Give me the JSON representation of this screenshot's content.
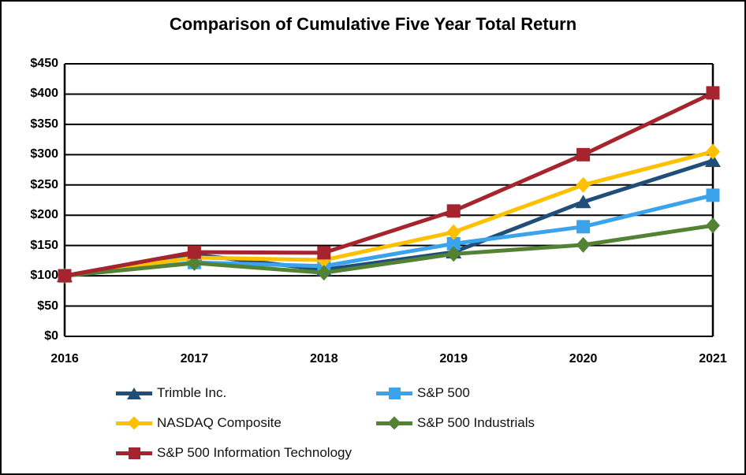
{
  "title": "Comparison of Cumulative Five Year Total Return",
  "chart_data": {
    "type": "line",
    "x": [
      "2016",
      "2017",
      "2018",
      "2019",
      "2020",
      "2021"
    ],
    "series": [
      {
        "name": "Trimble Inc.",
        "color": "#1F4E79",
        "marker": "triangle",
        "values": [
          100,
          135,
          110,
          139,
          222,
          290
        ]
      },
      {
        "name": "S&P 500",
        "color": "#3BA3EB",
        "marker": "square",
        "values": [
          100,
          122,
          116,
          153,
          181,
          233
        ]
      },
      {
        "name": "NASDAQ Composite",
        "color": "#FFC000",
        "marker": "diamond",
        "values": [
          100,
          130,
          126,
          172,
          250,
          305
        ]
      },
      {
        "name": "S&P 500 Industrials",
        "color": "#548235",
        "marker": "diamond",
        "values": [
          100,
          121,
          105,
          136,
          151,
          183
        ]
      },
      {
        "name": "S&P 500 Information Technology",
        "color": "#A6242D",
        "marker": "square",
        "values": [
          100,
          139,
          138,
          207,
          300,
          402
        ]
      }
    ],
    "ylim": [
      0,
      450
    ],
    "ytick_step": 50,
    "yaxis_labels": [
      "$450",
      "$400",
      "$350",
      "$300",
      "$250",
      "$200",
      "$150",
      "$100",
      "$50",
      "$0"
    ],
    "xaxis_labels": [
      "2016",
      "2017",
      "2018",
      "2019",
      "2020",
      "2021"
    ],
    "grid": true,
    "grid_color": "#000000",
    "frame_color": "#000000",
    "legend_position": "bottom"
  }
}
